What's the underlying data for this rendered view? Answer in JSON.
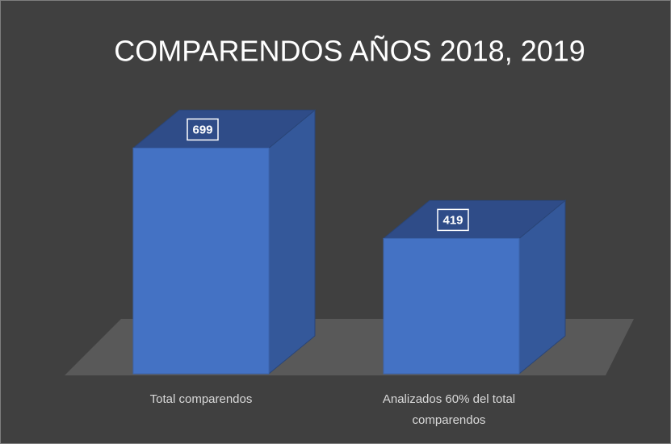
{
  "chart_data": {
    "type": "bar3d",
    "title": "COMPARENDOS AÑOS 2018, 2019",
    "categories": [
      "Total comparendos",
      "Analizados 60% del total comparendos"
    ],
    "values": [
      699,
      419
    ],
    "color": "#4472c4"
  }
}
